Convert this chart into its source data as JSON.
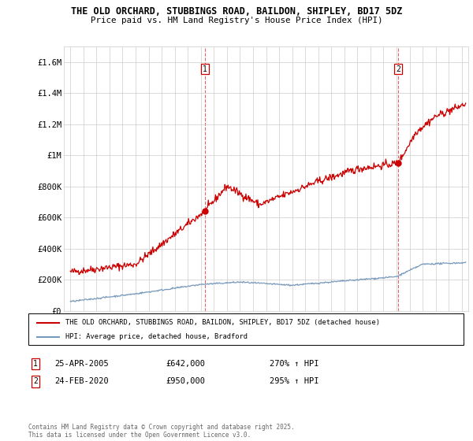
{
  "title1": "THE OLD ORCHARD, STUBBINGS ROAD, BAILDON, SHIPLEY, BD17 5DZ",
  "title2": "Price paid vs. HM Land Registry's House Price Index (HPI)",
  "legend_line1": "THE OLD ORCHARD, STUBBINGS ROAD, BAILDON, SHIPLEY, BD17 5DZ (detached house)",
  "legend_line2": "HPI: Average price, detached house, Bradford",
  "footer": "Contains HM Land Registry data © Crown copyright and database right 2025.\nThis data is licensed under the Open Government Licence v3.0.",
  "point1_label": "1",
  "point1_date": "25-APR-2005",
  "point1_price": "£642,000",
  "point1_hpi": "270% ↑ HPI",
  "point1_year": 2005.32,
  "point1_value": 642000,
  "point2_label": "2",
  "point2_date": "24-FEB-2020",
  "point2_price": "£950,000",
  "point2_hpi": "295% ↑ HPI",
  "point2_year": 2020.14,
  "point2_value": 950000,
  "red_color": "#cc0000",
  "blue_color": "#7799bb",
  "background_color": "#ffffff",
  "grid_color": "#cccccc",
  "ylim": [
    0,
    1700000
  ],
  "xlim": [
    1994.5,
    2025.5
  ],
  "yticks": [
    0,
    200000,
    400000,
    600000,
    800000,
    1000000,
    1200000,
    1400000,
    1600000
  ],
  "ytick_labels": [
    "£0",
    "£200K",
    "£400K",
    "£600K",
    "£800K",
    "£1M",
    "£1.2M",
    "£1.4M",
    "£1.6M"
  ],
  "xticks": [
    1995,
    1996,
    1997,
    1998,
    1999,
    2000,
    2001,
    2002,
    2003,
    2004,
    2005,
    2006,
    2007,
    2008,
    2009,
    2010,
    2011,
    2012,
    2013,
    2014,
    2015,
    2016,
    2017,
    2018,
    2019,
    2020,
    2021,
    2022,
    2023,
    2024,
    2025
  ]
}
